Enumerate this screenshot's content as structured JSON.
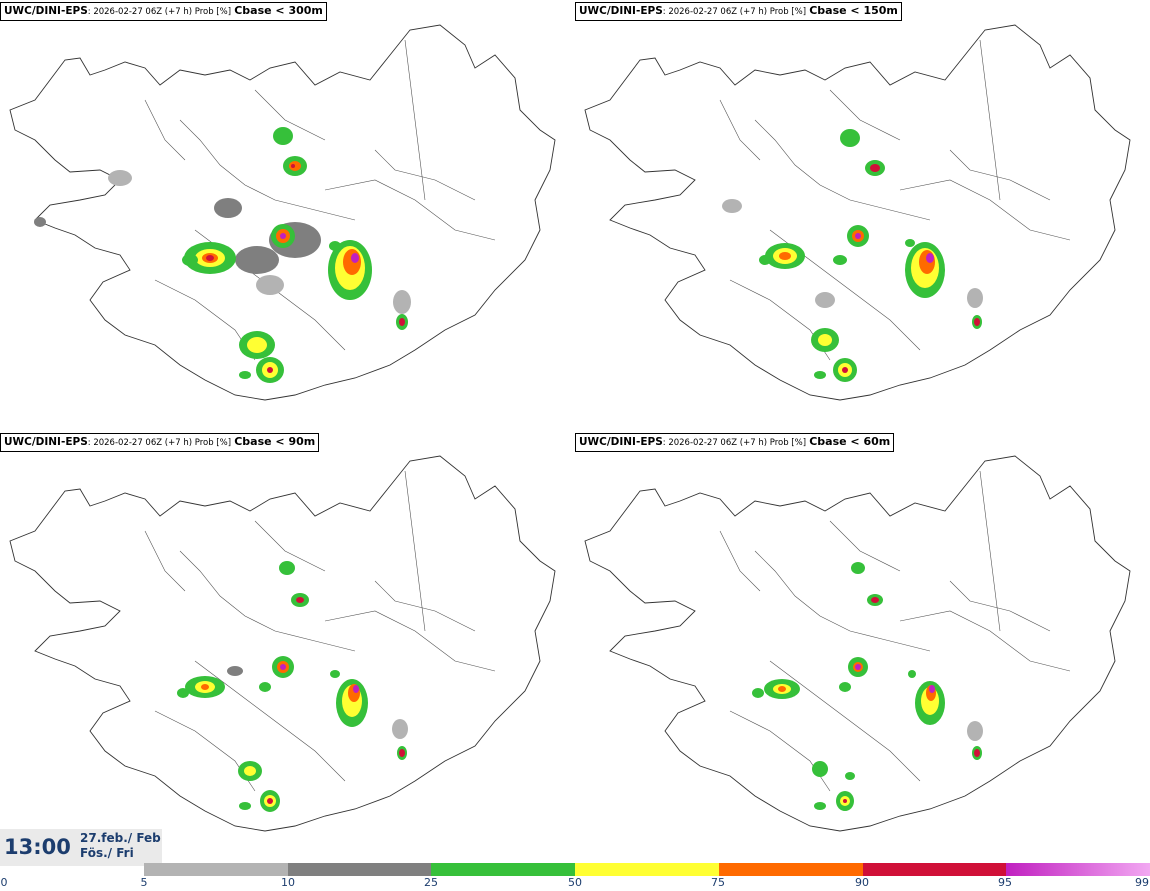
{
  "panels": [
    {
      "model": "UWC/DINI-EPS",
      "meta": ": 2026-02-27 06Z (+7 h) Prob [%]",
      "threshold": "Cbase < 300m"
    },
    {
      "model": "UWC/DINI-EPS",
      "meta": ": 2026-02-27 06Z (+7 h) Prob [%]",
      "threshold": "Cbase < 150m"
    },
    {
      "model": "UWC/DINI-EPS",
      "meta": ": 2026-02-27 06Z (+7 h) Prob [%]",
      "threshold": "Cbase < 90m"
    },
    {
      "model": "UWC/DINI-EPS",
      "meta": ": 2026-02-27 06Z (+7 h) Prob [%]",
      "threshold": "Cbase < 60m"
    }
  ],
  "time": {
    "clock": "13:00",
    "date_line": "27.feb./ Feb",
    "day_line": "Fös./ Fri"
  },
  "colorbar": {
    "ticks": [
      "0",
      "5",
      "10",
      "25",
      "50",
      "75",
      "90",
      "95",
      "99"
    ],
    "colors": [
      "#b3b3b3",
      "#7f7f7f",
      "#36c03a",
      "#ffff33",
      "#ff6a00",
      "#d01038",
      "#c020c0",
      "#f2a8f2"
    ]
  }
}
